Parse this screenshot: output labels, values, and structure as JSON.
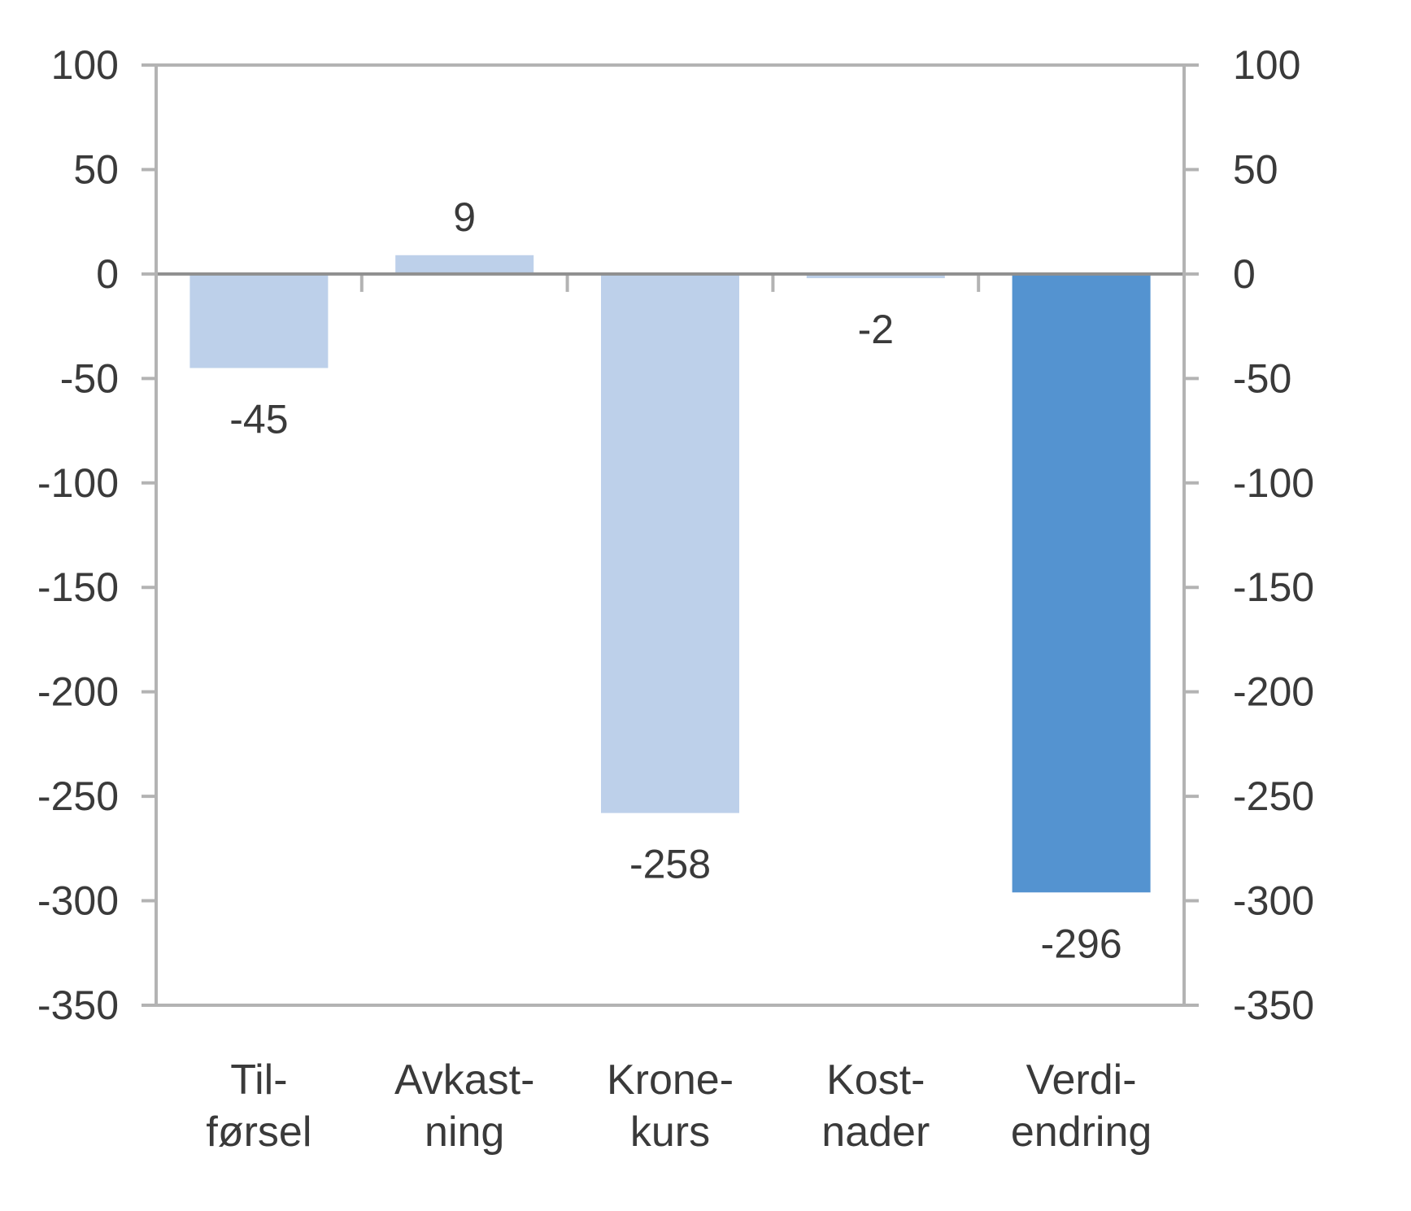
{
  "chart_data": {
    "type": "bar",
    "categories": [
      [
        "Til-",
        "førsel"
      ],
      [
        "Avkast-",
        "ning"
      ],
      [
        "Krone-",
        "kurs"
      ],
      [
        "Kost-",
        "nader"
      ],
      [
        "Verdi-",
        "endring"
      ]
    ],
    "values": [
      -45,
      9,
      -258,
      -2,
      -296
    ],
    "data_labels": [
      "-45",
      "9",
      "-258",
      "-2",
      "-296"
    ],
    "bar_colors": [
      "#bdd0ea",
      "#bdd0ea",
      "#bdd0ea",
      "#bdd0ea",
      "#5493d0"
    ],
    "title": "",
    "xlabel": "",
    "ylabel": "",
    "ylim": [
      -350,
      100
    ],
    "yticks": [
      100,
      50,
      0,
      -50,
      -100,
      -150,
      -200,
      -250,
      -300,
      -350
    ],
    "ytick_labels": [
      "100",
      "50",
      "0",
      "-50",
      "-100",
      "-150",
      "-200",
      "-250",
      "-300",
      "-350"
    ],
    "dual_y_axis": true,
    "grid": false,
    "legend": "none"
  }
}
